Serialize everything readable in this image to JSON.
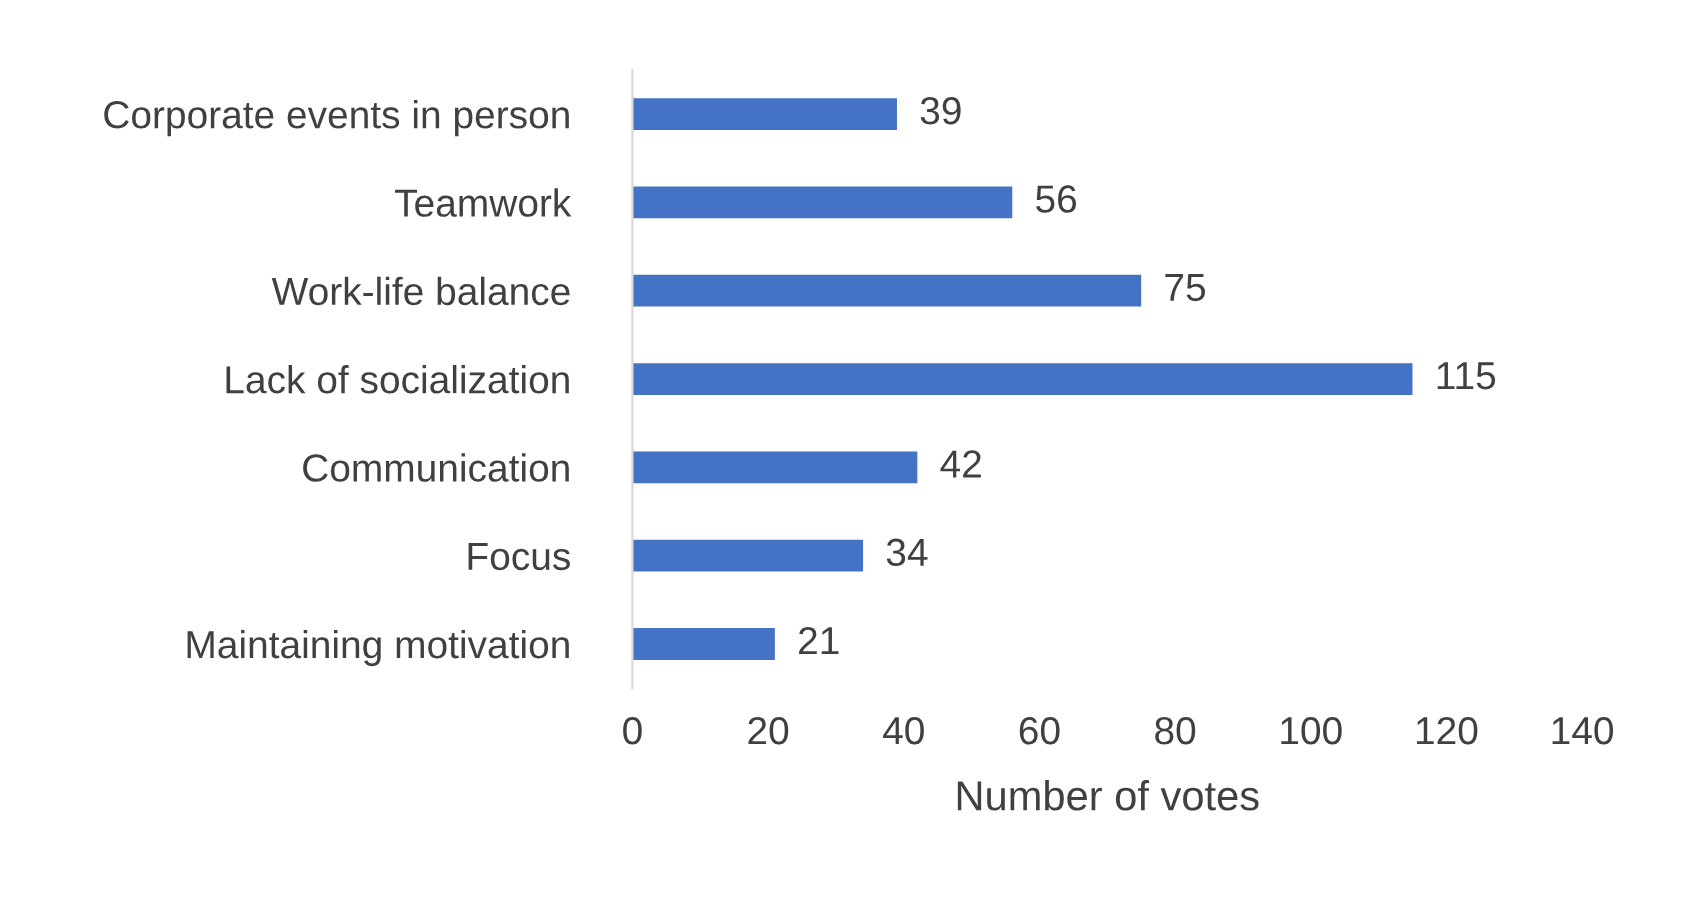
{
  "chart_data": {
    "type": "bar",
    "orientation": "horizontal",
    "xlabel": "Number of votes",
    "categories": [
      "Corporate events in person",
      "Teamwork",
      "Work-life balance",
      "Lack of socialization",
      "Communication",
      "Focus",
      "Maintaining motivation"
    ],
    "values": [
      39,
      56,
      75,
      115,
      42,
      34,
      21
    ],
    "color": "#4472c4",
    "xlim": [
      0,
      140
    ],
    "xticks": [
      0,
      20,
      40,
      60,
      80,
      100,
      120,
      140
    ],
    "data_labels": true,
    "grid": false,
    "legend": false
  }
}
